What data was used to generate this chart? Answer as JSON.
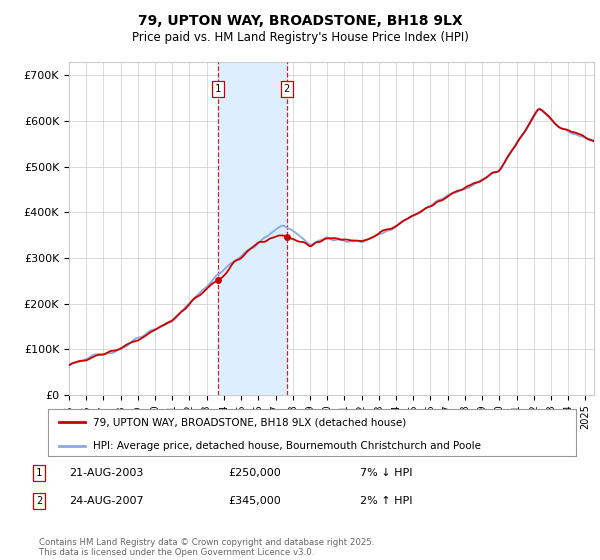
{
  "title": "79, UPTON WAY, BROADSTONE, BH18 9LX",
  "subtitle": "Price paid vs. HM Land Registry's House Price Index (HPI)",
  "ylabel_ticks": [
    "£0",
    "£100K",
    "£200K",
    "£300K",
    "£400K",
    "£500K",
    "£600K",
    "£700K"
  ],
  "ytick_vals": [
    0,
    100000,
    200000,
    300000,
    400000,
    500000,
    600000,
    700000
  ],
  "ylim": [
    0,
    730000
  ],
  "xlim_start": 1995.0,
  "xlim_end": 2025.5,
  "purchase1_date": 2003.64,
  "purchase1_price": 250000,
  "purchase1_label": "1",
  "purchase2_date": 2007.64,
  "purchase2_price": 345000,
  "purchase2_label": "2",
  "legend_line1": "79, UPTON WAY, BROADSTONE, BH18 9LX (detached house)",
  "legend_line2": "HPI: Average price, detached house, Bournemouth Christchurch and Poole",
  "footer": "Contains HM Land Registry data © Crown copyright and database right 2025.\nThis data is licensed under the Open Government Licence v3.0.",
  "line_color_red": "#cc0000",
  "line_color_blue": "#88aadd",
  "shading_color": "#ddeeff",
  "grid_color": "#cccccc",
  "background_color": "#ffffff",
  "purchase_box_color": "#cc0000"
}
